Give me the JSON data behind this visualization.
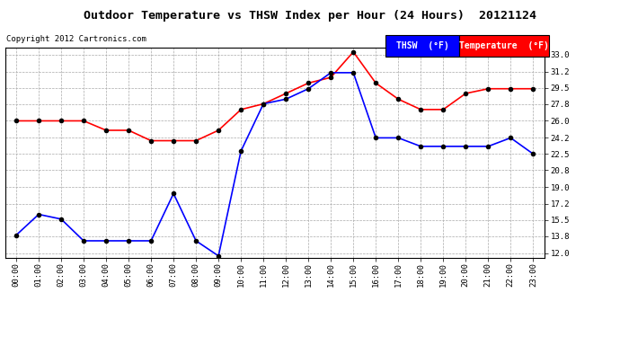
{
  "title": "Outdoor Temperature vs THSW Index per Hour (24 Hours)  20121124",
  "copyright": "Copyright 2012 Cartronics.com",
  "x_labels": [
    "00:00",
    "01:00",
    "02:00",
    "03:00",
    "04:00",
    "05:00",
    "06:00",
    "07:00",
    "08:00",
    "09:00",
    "10:00",
    "11:00",
    "12:00",
    "13:00",
    "14:00",
    "15:00",
    "16:00",
    "17:00",
    "18:00",
    "19:00",
    "20:00",
    "21:00",
    "22:00",
    "23:00"
  ],
  "temperature": [
    26.0,
    26.0,
    26.0,
    26.0,
    25.0,
    25.0,
    23.9,
    23.9,
    23.9,
    25.0,
    27.2,
    27.8,
    28.9,
    30.0,
    30.6,
    33.3,
    30.0,
    28.3,
    27.2,
    27.2,
    28.9,
    29.4,
    29.4,
    29.4
  ],
  "thsw": [
    13.9,
    16.1,
    15.6,
    13.3,
    13.3,
    13.3,
    13.3,
    18.3,
    13.3,
    11.7,
    22.8,
    27.8,
    28.3,
    29.4,
    31.1,
    31.1,
    24.2,
    24.2,
    23.3,
    23.3,
    23.3,
    23.3,
    24.2,
    22.5
  ],
  "temp_color": "#ff0000",
  "thsw_color": "#0000ff",
  "marker_color": "#000000",
  "background_color": "#ffffff",
  "grid_color": "#aaaaaa",
  "y_ticks": [
    12.0,
    13.8,
    15.5,
    17.2,
    19.0,
    20.8,
    22.5,
    24.2,
    26.0,
    27.8,
    29.5,
    31.2,
    33.0
  ],
  "ylim": [
    11.5,
    33.8
  ],
  "legend_thsw_label": "THSW  (°F)",
  "legend_temp_label": "Temperature  (°F)"
}
